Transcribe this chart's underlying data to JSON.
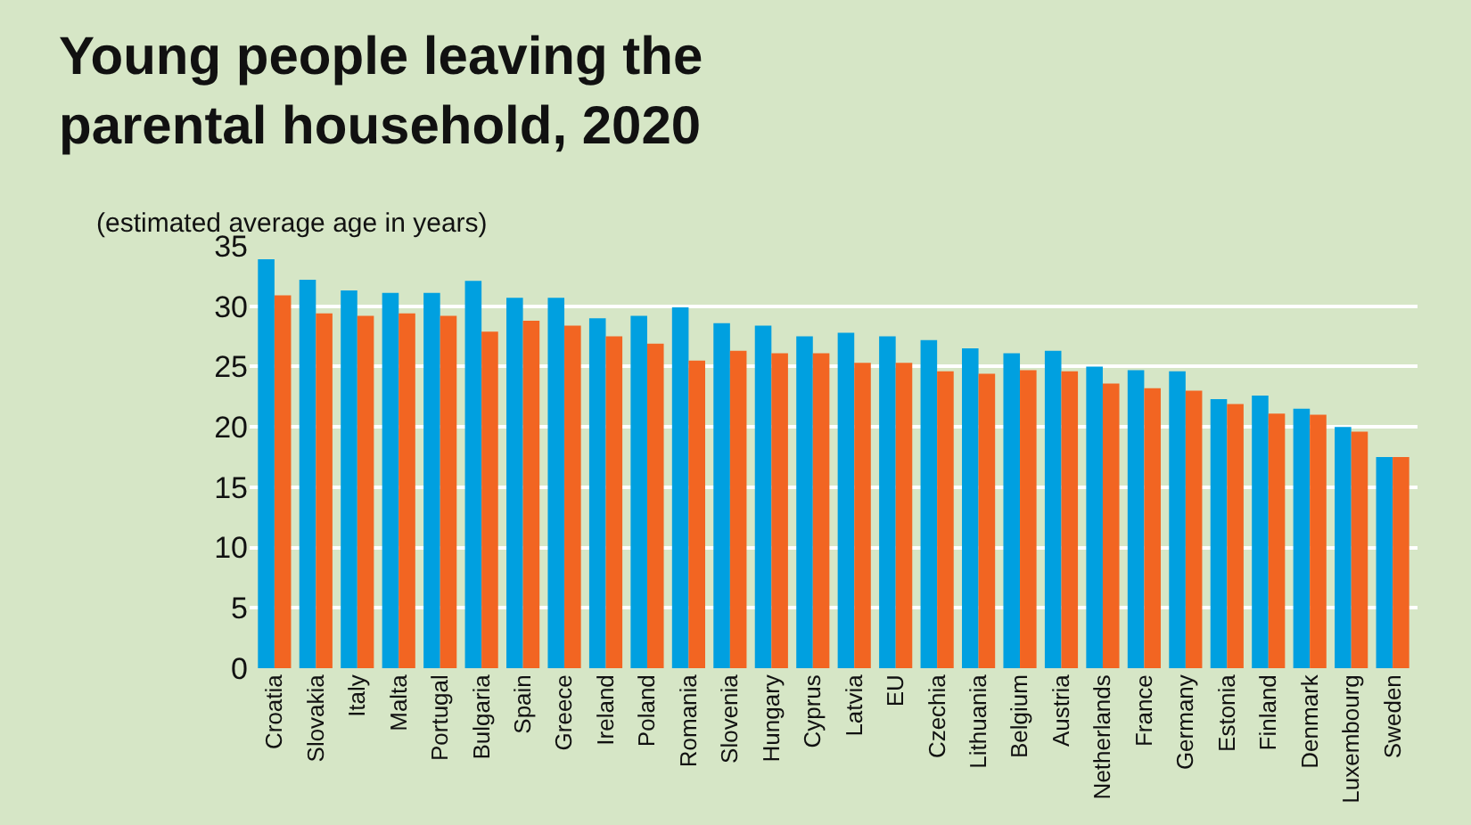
{
  "chart_data": {
    "type": "bar",
    "title": "Young people leaving the parental household, 2020",
    "subtitle": "(estimated average age in years)",
    "categories": [
      "Croatia",
      "Slovakia",
      "Italy",
      "Malta",
      "Portugal",
      "Bulgaria",
      "Spain",
      "Greece",
      "Ireland",
      "Poland",
      "Romania",
      "Slovenia",
      "Hungary",
      "Cyprus",
      "Latvia",
      "EU",
      "Czechia",
      "Lithuania",
      "Belgium",
      "Austria",
      "Netherlands",
      "France",
      "Germany",
      "Estonia",
      "Finland",
      "Denmark",
      "Luxembourg",
      "Sweden"
    ],
    "series": [
      {
        "color": "#00a0e0",
        "values": [
          33.9,
          32.2,
          31.3,
          31.1,
          31.1,
          32.1,
          30.7,
          30.7,
          29.0,
          29.2,
          29.9,
          28.6,
          28.4,
          27.5,
          27.8,
          27.5,
          27.2,
          26.5,
          26.1,
          26.3,
          25.0,
          24.7,
          24.6,
          22.3,
          22.6,
          21.5,
          20.0,
          17.5
        ]
      },
      {
        "color": "#f26522",
        "values": [
          30.9,
          29.4,
          29.2,
          29.4,
          29.2,
          27.9,
          28.8,
          28.4,
          27.5,
          26.9,
          25.5,
          26.3,
          26.1,
          26.1,
          25.3,
          25.3,
          24.6,
          24.4,
          24.7,
          24.6,
          23.6,
          23.2,
          23.0,
          21.9,
          21.1,
          21.0,
          19.6,
          17.5
        ]
      }
    ],
    "ylim": [
      0,
      35
    ],
    "yticks": [
      0,
      5,
      10,
      15,
      20,
      25,
      30,
      35
    ],
    "grid": "y"
  }
}
